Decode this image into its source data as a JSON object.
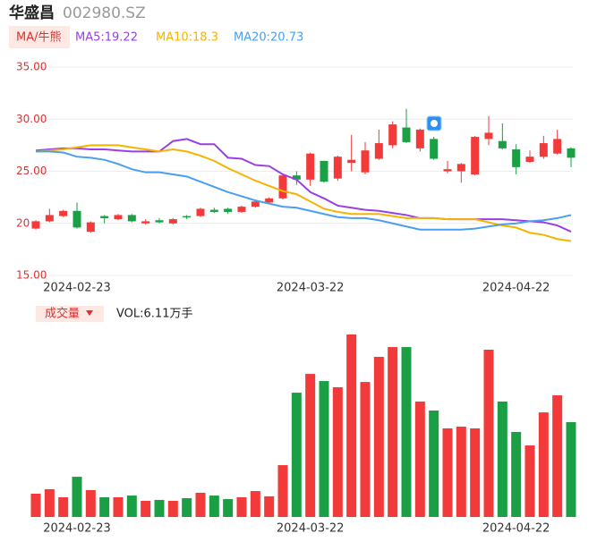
{
  "header": {
    "name": "华盛昌",
    "code": "002980.SZ"
  },
  "chart_data": [
    {
      "type": "candlestick",
      "indicator": "MA/牛熊",
      "categories": [
        null,
        null,
        null,
        "2024-02-23",
        null,
        null,
        null,
        null,
        null,
        null,
        null,
        null,
        null,
        null,
        null,
        null,
        null,
        null,
        null,
        null,
        "2024-03-22",
        null,
        null,
        null,
        null,
        null,
        null,
        null,
        null,
        null,
        null,
        null,
        null,
        null,
        null,
        "2024-04-22",
        null,
        null,
        null,
        null
      ],
      "open": [
        19.5,
        20.2,
        20.7,
        21.2,
        19.2,
        20.7,
        20.4,
        20.8,
        20.0,
        20.3,
        20.0,
        20.7,
        20.7,
        21.3,
        21.4,
        21.1,
        21.6,
        22.0,
        22.4,
        24.6,
        24.2,
        26.0,
        24.3,
        25.8,
        24.9,
        26.2,
        27.5,
        29.2,
        27.2,
        28.1,
        25.0,
        25.0,
        24.7,
        28.1,
        27.9,
        27.1,
        25.9,
        26.4,
        26.7,
        27.2
      ],
      "close": [
        20.2,
        20.8,
        21.2,
        19.6,
        20.1,
        20.5,
        20.8,
        20.2,
        20.2,
        20.1,
        20.4,
        20.6,
        21.4,
        21.1,
        21.1,
        21.6,
        22.1,
        22.4,
        24.6,
        24.2,
        26.7,
        24.0,
        26.4,
        26.1,
        27.0,
        27.7,
        29.5,
        27.8,
        29.0,
        26.2,
        25.2,
        25.7,
        28.3,
        28.7,
        27.2,
        25.4,
        26.4,
        27.7,
        28.1,
        26.3
      ],
      "high": [
        20.3,
        21.4,
        21.3,
        22.0,
        20.2,
        20.8,
        20.9,
        20.9,
        20.4,
        20.5,
        20.5,
        20.8,
        21.5,
        21.5,
        21.5,
        21.7,
        22.2,
        22.5,
        24.8,
        25.0,
        26.8,
        26.0,
        26.5,
        28.5,
        27.8,
        29.0,
        29.8,
        31.0,
        29.1,
        28.3,
        26.0,
        25.8,
        28.4,
        30.3,
        29.6,
        27.6,
        27.0,
        28.4,
        29.0,
        27.3
      ],
      "low": [
        19.4,
        20.1,
        20.6,
        19.5,
        19.1,
        20.0,
        20.3,
        20.1,
        19.9,
        20.0,
        19.9,
        20.4,
        20.6,
        21.0,
        20.9,
        21.0,
        21.5,
        21.9,
        22.3,
        23.7,
        23.6,
        23.9,
        24.1,
        25.0,
        24.7,
        26.1,
        27.2,
        27.7,
        26.9,
        26.1,
        24.8,
        23.9,
        24.6,
        27.5,
        27.1,
        24.7,
        25.8,
        26.2,
        26.6,
        25.4
      ],
      "up_color": "#f23a3a",
      "down_color": "#1a9f45",
      "series": [
        {
          "name": "MA5:19.22",
          "color": "#9a3fe3",
          "values": [
            27.0,
            27.1,
            27.2,
            27.2,
            27.1,
            27.1,
            27.0,
            26.9,
            26.9,
            26.9,
            27.9,
            28.1,
            27.6,
            27.6,
            26.3,
            26.2,
            25.6,
            25.5,
            24.7,
            24.2,
            23.0,
            22.4,
            21.7,
            21.5,
            21.3,
            21.2,
            21.0,
            20.8,
            20.5,
            20.5,
            20.4,
            20.4,
            20.4,
            20.4,
            20.4,
            20.3,
            20.2,
            20.1,
            19.8,
            19.2
          ]
        },
        {
          "name": "MA10:18.3",
          "color": "#f5b400",
          "values": [
            26.9,
            27.0,
            27.1,
            27.3,
            27.5,
            27.5,
            27.5,
            27.3,
            27.1,
            26.9,
            27.1,
            26.9,
            26.5,
            26.0,
            25.3,
            24.7,
            24.1,
            23.6,
            23.1,
            22.8,
            22.1,
            21.4,
            21.1,
            20.9,
            20.9,
            20.9,
            20.7,
            20.5,
            20.5,
            20.5,
            20.4,
            20.4,
            20.4,
            20.1,
            19.8,
            19.6,
            19.1,
            18.9,
            18.5,
            18.3
          ]
        },
        {
          "name": "MA20:20.73",
          "color": "#4a9ff0",
          "values": [
            26.9,
            26.9,
            26.8,
            26.4,
            26.3,
            26.1,
            25.7,
            25.2,
            24.9,
            24.9,
            24.7,
            24.5,
            24.0,
            23.5,
            23.0,
            22.6,
            22.2,
            21.9,
            21.6,
            21.5,
            21.2,
            20.9,
            20.6,
            20.5,
            20.5,
            20.3,
            20.0,
            19.7,
            19.4,
            19.4,
            19.4,
            19.4,
            19.5,
            19.7,
            19.9,
            20.0,
            20.2,
            20.3,
            20.5,
            20.8
          ]
        }
      ],
      "ylim": [
        15,
        35
      ],
      "yticks": [
        {
          "value": 15,
          "label": "15.00"
        },
        {
          "value": 20,
          "label": "20"
        },
        {
          "value": 25,
          "label": "25.00"
        },
        {
          "value": 30,
          "label": "30.00"
        },
        {
          "value": 35,
          "label": "35.00"
        }
      ],
      "grid": true
    },
    {
      "type": "bar",
      "indicator": "成交量",
      "value_text": "VOL:6.11万手",
      "values": [
        1.5,
        1.79,
        1.27,
        2.59,
        1.73,
        1.27,
        1.27,
        1.38,
        1.04,
        1.1,
        1.04,
        1.21,
        1.56,
        1.38,
        1.15,
        1.27,
        1.67,
        1.33,
        3.34,
        8.01,
        9.22,
        8.76,
        8.36,
        11.76,
        8.7,
        10.32,
        10.95,
        10.95,
        7.44,
        6.86,
        5.71,
        5.82,
        5.71,
        10.78,
        7.44,
        5.48,
        4.61,
        6.74,
        7.84,
        6.11
      ]
    }
  ]
}
